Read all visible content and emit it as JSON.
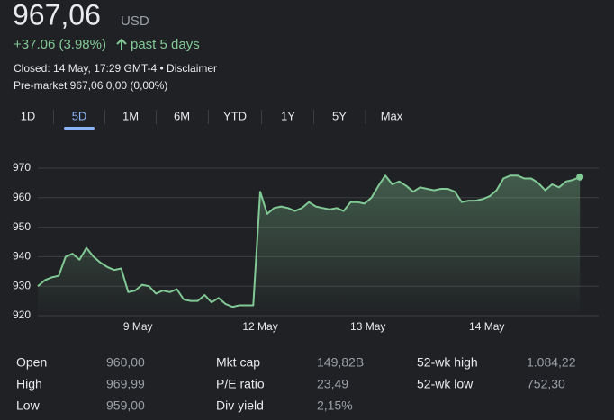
{
  "header": {
    "price": "967,06",
    "currency": "USD",
    "change": "+37.06 (3.98%)",
    "period": "past 5 days",
    "closed": "Closed: 14 May, 17:29 GMT-4 • Disclaimer",
    "premarket": "Pre-market 967,06 0,00 (0,00%)"
  },
  "tabs": [
    "1D",
    "5D",
    "1M",
    "6M",
    "YTD",
    "1Y",
    "5Y",
    "Max"
  ],
  "selected_tab": 1,
  "chart_data": {
    "type": "line",
    "color": "#81c995",
    "values": [
      930,
      932,
      933,
      933.5,
      940,
      941,
      939,
      943,
      940,
      938,
      936.5,
      935.5,
      936,
      928,
      928.5,
      930.5,
      930,
      927.5,
      928.5,
      928,
      929,
      925.5,
      925,
      925,
      927,
      924.5,
      926,
      924,
      923,
      923.5,
      923.5,
      923.5,
      962,
      954.5,
      956.5,
      957,
      956.5,
      955.5,
      956.5,
      958.5,
      957,
      956.5,
      956,
      956.5,
      955.5,
      958.5,
      958.5,
      958,
      960,
      964,
      967.5,
      964.5,
      965.5,
      964,
      962,
      963.5,
      963,
      962.5,
      963,
      963,
      962,
      958.5,
      959,
      959,
      959.5,
      960.5,
      962.5,
      966.5,
      967.5,
      967.5,
      966.5,
      966.5,
      965,
      962.5,
      964.5,
      963.5,
      965.5,
      966,
      967
    ],
    "xlim": [
      0,
      80
    ],
    "xticks": [
      {
        "value": 14.4,
        "label": "9 May"
      },
      {
        "value": 32,
        "label": "12 May"
      },
      {
        "value": 47.5,
        "label": "13 May"
      },
      {
        "value": 64.6,
        "label": "14 May"
      }
    ],
    "ylim": [
      920,
      970
    ],
    "yticks": [
      920,
      930,
      940,
      950,
      960,
      970
    ],
    "grid": true
  },
  "stats": [
    [
      {
        "label": "Open",
        "value": "960,00"
      },
      {
        "label": "Mkt cap",
        "value": "149,82B"
      },
      {
        "label": "52-wk high",
        "value": "1.084,22"
      }
    ],
    [
      {
        "label": "High",
        "value": "969,99"
      },
      {
        "label": "P/E ratio",
        "value": "23,49"
      },
      {
        "label": "52-wk low",
        "value": "752,30"
      }
    ],
    [
      {
        "label": "Low",
        "value": "959,00"
      },
      {
        "label": "Div yield",
        "value": "2,15%"
      }
    ]
  ]
}
